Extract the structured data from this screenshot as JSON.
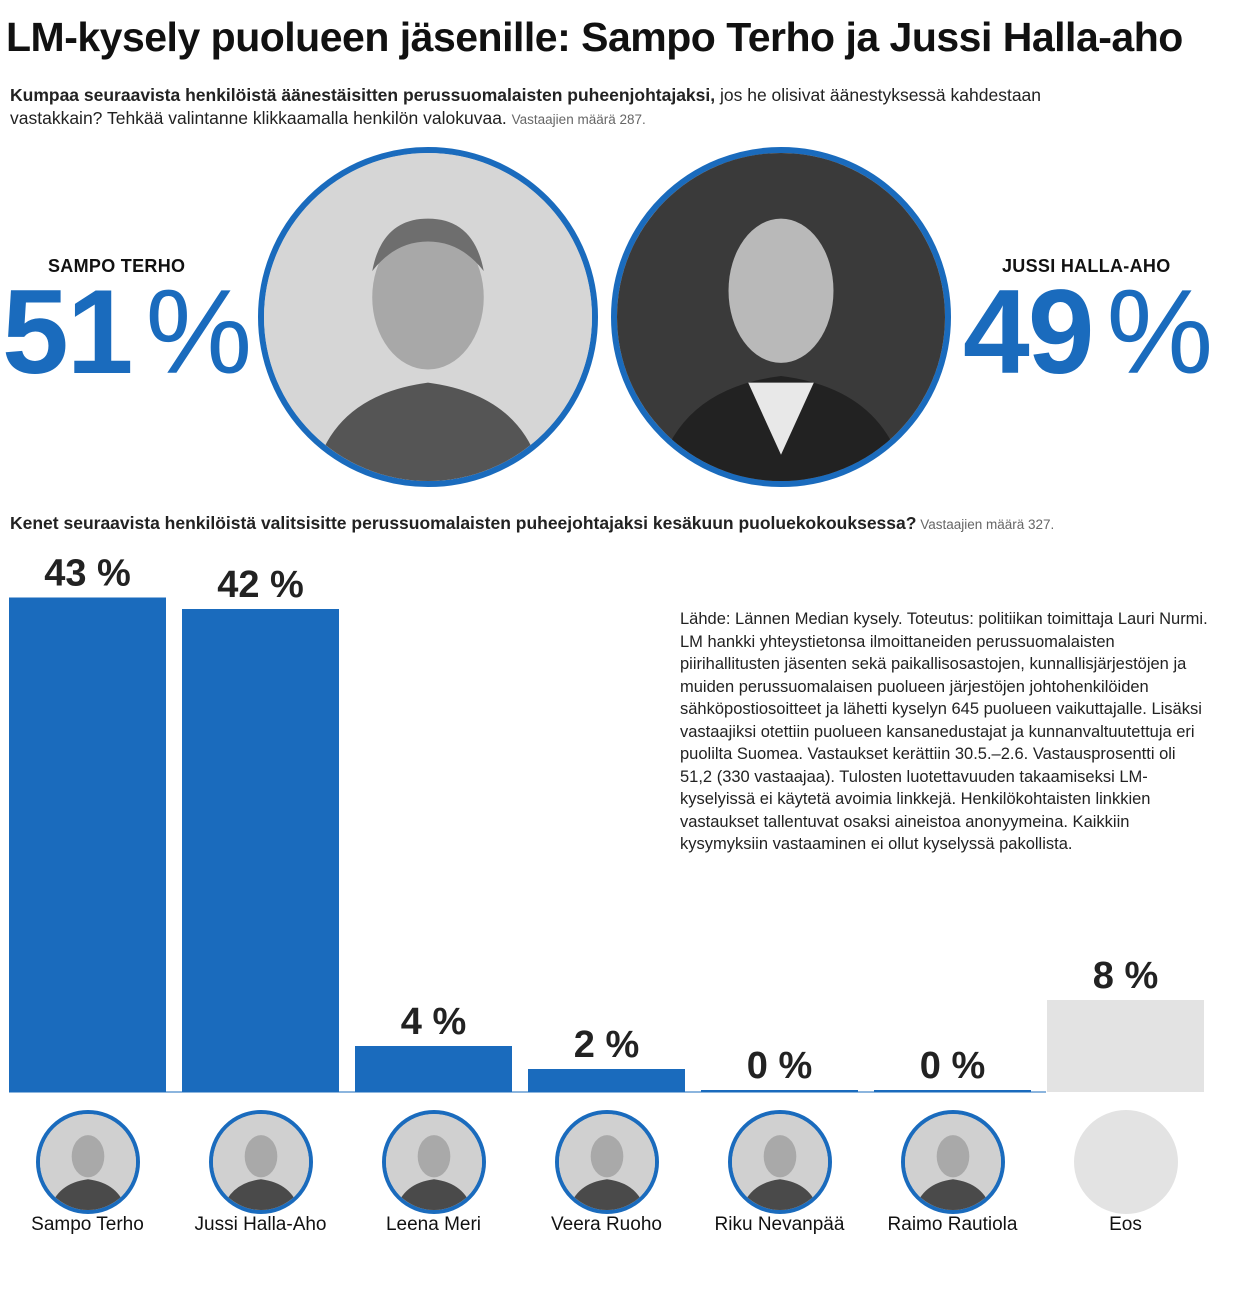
{
  "title": "LM-kysely puolueen jäsenille: Sampo Terho ja Jussi Halla-aho",
  "q1": {
    "bold": "Kumpaa seuraavista henkilöistä äänestäisitten perussuomalaisten puheenjohtajaksi,",
    "rest": " jos he olisivat äänestyksessä kahdestaan vastakkain? Tehkää valintanne klikkaamalla henkilön valokuvaa. ",
    "respondents": "Vastaajien määrä 287."
  },
  "duel": {
    "left": {
      "name": "SAMPO TERHO",
      "value": "51",
      "symbol": "%"
    },
    "right": {
      "name": "JUSSI HALLA-AHO",
      "value": "49",
      "symbol": "%"
    }
  },
  "q2": {
    "bold": "Kenet seuraavista henkilöistä valitsisitte perussuomalaisten puheejohtajaksi kesäkuun puoluekokouksessa?",
    "respondents": " Vastaajien määrä 327."
  },
  "source": "Lähde: Lännen Median kysely. Toteutus: politiikan toimittaja Lauri Nurmi. LM hankki yhteystietonsa ilmoittaneiden perussuomalaisten piirihallitusten jäsenten sekä paikallisosastojen, kunnallisjärjestöjen ja muiden perussuomalaisen puolueen järjestöjen johtohenkilöiden sähköpostiosoitteet ja lähetti kyselyn 645 puolueen vaikuttajalle. Lisäksi vastaajiksi otettiin puolueen kansanedustajat ja kunnanvaltuutettuja eri puolilta Suomea. Vastaukset kerättiin 30.5.–2.6. Vastausprosentti oli 51,2 (330 vastaajaa). Tulosten luotettavuuden takaamiseksi LM-kyselyissä ei käytetä avoimia linkkejä. Henkilökohtaisten linkkien vastaukset tallentuvat osaksi aineistoa anonyymeina. Kaikkiin kysymyksiin vastaaminen ei ollut kyselyssä pakollista.",
  "chart_data": [
    {
      "type": "bar",
      "categories": [
        "SAMPO TERHO",
        "JUSSI HALLA-AHO"
      ],
      "values": [
        51,
        49
      ],
      "unit": "%"
    },
    {
      "type": "bar",
      "categories": [
        "Sampo Terho",
        "Jussi Halla-Aho",
        "Leena Meri",
        "Veera Ruoho",
        "Riku Nevanpää",
        "Raimo Rautiola",
        "Eos"
      ],
      "values": [
        43,
        42,
        4,
        2,
        0,
        0,
        8
      ],
      "labels": [
        "43 %",
        "42 %",
        "4 %",
        "2 %",
        "0 %",
        "0 %",
        "8 %"
      ],
      "unit": "%",
      "colors": {
        "bar": "#1a6bbd",
        "eos": "#e3e3e3"
      }
    }
  ],
  "colors": {
    "accent": "#1a6bbd",
    "neutral": "#e3e3e3"
  }
}
